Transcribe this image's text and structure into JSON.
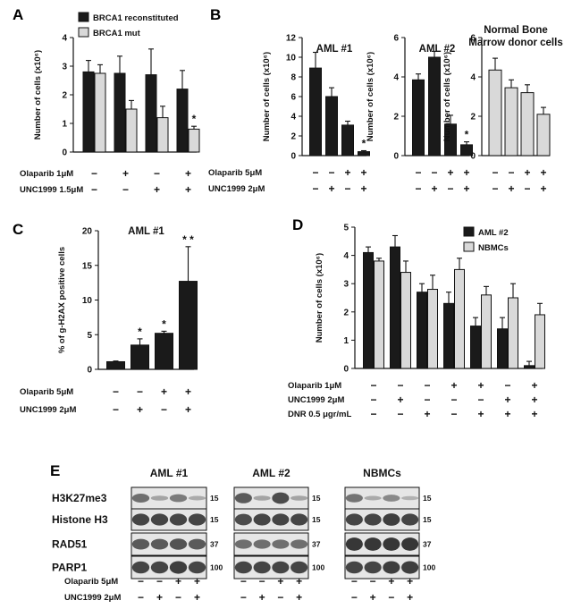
{
  "colors": {
    "dark": "#1a1a1a",
    "light": "#d9d9d9",
    "blot_bg": "#e6e6e6",
    "band": "#303030"
  },
  "panel_letters": [
    "A",
    "B",
    "C",
    "D",
    "E"
  ],
  "chart_data": [
    {
      "id": "A",
      "type": "bar",
      "title": "",
      "ylabel": "Number of cells (x10⁶)",
      "ylim": [
        0,
        4
      ],
      "yticks": [
        "0",
        "1",
        "2",
        "3",
        "4"
      ],
      "legend": [
        "BRCA1 reconstituted",
        "BRCA1 mut"
      ],
      "series": [
        {
          "name": "BRCA1 reconstituted",
          "color": "dark",
          "values": [
            2.8,
            2.75,
            2.7,
            2.2
          ],
          "errors": [
            0.4,
            0.6,
            0.9,
            0.65
          ]
        },
        {
          "name": "BRCA1 mut",
          "color": "light",
          "values": [
            2.75,
            1.5,
            1.2,
            0.8
          ],
          "errors": [
            0.3,
            0.3,
            0.4,
            0.1
          ]
        }
      ],
      "annotations": [
        {
          "group": 3,
          "series": 1,
          "text": "*"
        }
      ],
      "conditions": [
        {
          "label": "Olaparib 1μM",
          "values": [
            "−",
            "+",
            "−",
            "+"
          ]
        },
        {
          "label": "UNC1999 1.5μM",
          "values": [
            "−",
            "−",
            "+",
            "+"
          ]
        }
      ]
    },
    {
      "id": "B1",
      "type": "bar",
      "title": "AML #1",
      "ylabel": "Number of cells (x10⁶)",
      "ylim": [
        0,
        12
      ],
      "yticks": [
        "0",
        "2",
        "4",
        "6",
        "8",
        "10",
        "12"
      ],
      "series": [
        {
          "name": "AML #1",
          "color": "dark",
          "values": [
            8.9,
            6.0,
            3.1,
            0.4
          ],
          "errors": [
            1.6,
            0.9,
            0.4,
            0.1
          ]
        }
      ],
      "annotations": [
        {
          "group": 3,
          "series": 0,
          "text": "*"
        }
      ],
      "conditions": [
        {
          "label": "Olaparib 5μM",
          "values": [
            "−",
            "−",
            "+",
            "+"
          ]
        },
        {
          "label": "UNC1999 2μM",
          "values": [
            "−",
            "+",
            "−",
            "+"
          ]
        }
      ]
    },
    {
      "id": "B2",
      "type": "bar",
      "title": "AML #2",
      "ylabel": "Number of cells (x10⁶)",
      "ylim": [
        0,
        6
      ],
      "yticks": [
        "0",
        "2",
        "4",
        "6"
      ],
      "series": [
        {
          "name": "AML #2",
          "color": "dark",
          "values": [
            3.85,
            5.0,
            1.6,
            0.55
          ],
          "errors": [
            0.3,
            0.3,
            0.45,
            0.15
          ]
        }
      ],
      "annotations": [
        {
          "group": 3,
          "series": 0,
          "text": "*"
        }
      ],
      "conditions": [
        {
          "values": [
            "−",
            "−",
            "+",
            "+"
          ]
        },
        {
          "values": [
            "−",
            "+",
            "−",
            "+"
          ]
        }
      ]
    },
    {
      "id": "B3",
      "type": "bar",
      "title": "Normal Bone",
      "subtitle": "Marrow donor cells",
      "ylabel": "Number of cells (x10⁶)",
      "ylim": [
        0,
        6
      ],
      "yticks": [
        "0",
        "2",
        "4",
        "6"
      ],
      "series": [
        {
          "name": "Normal Bone Marrow donor cells",
          "color": "light",
          "values": [
            4.35,
            3.45,
            3.2,
            2.1
          ],
          "errors": [
            0.6,
            0.4,
            0.4,
            0.35
          ]
        }
      ],
      "annotations": [],
      "conditions": [
        {
          "values": [
            "−",
            "−",
            "+",
            "+"
          ]
        },
        {
          "values": [
            "−",
            "+",
            "−",
            "+"
          ]
        }
      ]
    },
    {
      "id": "C",
      "type": "bar",
      "title": "AML #1",
      "ylabel": "% of g-H2AX positive cells",
      "ylim": [
        0,
        20
      ],
      "yticks": [
        "0",
        "5",
        "10",
        "15",
        "20"
      ],
      "series": [
        {
          "name": "AML #1",
          "color": "dark",
          "values": [
            1.1,
            3.5,
            5.2,
            12.7
          ],
          "errors": [
            0.1,
            0.9,
            0.3,
            5.0
          ]
        }
      ],
      "annotations": [
        {
          "group": 1,
          "series": 0,
          "text": "*"
        },
        {
          "group": 2,
          "series": 0,
          "text": "*"
        },
        {
          "group": 3,
          "series": 0,
          "text": "* *"
        }
      ],
      "conditions": [
        {
          "label": "Olaparib 5μM",
          "values": [
            "−",
            "−",
            "+",
            "+"
          ]
        },
        {
          "label": "UNC1999 2μM",
          "values": [
            "−",
            "+",
            "−",
            "+"
          ]
        }
      ]
    },
    {
      "id": "D",
      "type": "bar",
      "title": "",
      "ylabel": "Number of cells (x10⁶)",
      "ylim": [
        0,
        5
      ],
      "yticks": [
        "0",
        "1",
        "2",
        "3",
        "4",
        "5"
      ],
      "legend": [
        "AML #2",
        "NBMCs"
      ],
      "series": [
        {
          "name": "AML #2",
          "color": "dark",
          "values": [
            4.1,
            4.3,
            2.7,
            2.3,
            1.5,
            1.4,
            0.1
          ],
          "errors": [
            0.2,
            0.4,
            0.3,
            0.4,
            0.3,
            0.4,
            0.15
          ]
        },
        {
          "name": "NBMCs",
          "color": "light",
          "values": [
            3.8,
            3.4,
            2.8,
            3.5,
            2.6,
            2.5,
            1.9
          ],
          "errors": [
            0.1,
            0.4,
            0.5,
            0.4,
            0.3,
            0.5,
            0.4
          ]
        }
      ],
      "annotations": [],
      "conditions": [
        {
          "label": "Olaparib 1μM",
          "values": [
            "−",
            "−",
            "−",
            "+",
            "+",
            "−",
            "+"
          ]
        },
        {
          "label": "UNC1999 2μM",
          "values": [
            "−",
            "+",
            "−",
            "−",
            "−",
            "+",
            "+"
          ]
        },
        {
          "label": "DNR 0.5 μgr/mL",
          "values": [
            "−",
            "−",
            "+",
            "−",
            "+",
            "+",
            "+"
          ]
        }
      ]
    }
  ],
  "western": {
    "blots": [
      {
        "title": "AML #1"
      },
      {
        "title": "AML #2"
      },
      {
        "title": "NBMCs"
      }
    ],
    "rows": [
      {
        "label": "H3K27me3",
        "kda": "15",
        "pattern": [
          [
            0.55,
            0.15,
            0.45,
            0.1
          ],
          [
            0.7,
            0.15,
            0.8,
            0.15
          ],
          [
            0.5,
            0.1,
            0.35,
            0.05
          ]
        ]
      },
      {
        "label": "Histone H3",
        "kda": "15",
        "pattern": [
          [
            0.85,
            0.85,
            0.85,
            0.85
          ],
          [
            0.8,
            0.85,
            0.85,
            0.85
          ],
          [
            0.85,
            0.85,
            0.9,
            0.85
          ]
        ]
      },
      {
        "label": "RAD51",
        "kda": "37",
        "pattern": [
          [
            0.7,
            0.7,
            0.75,
            0.7
          ],
          [
            0.55,
            0.55,
            0.55,
            0.55
          ],
          [
            0.95,
            0.95,
            0.95,
            0.95
          ]
        ]
      },
      {
        "label": "PARP1",
        "kda": "100",
        "pattern": [
          [
            0.85,
            0.85,
            0.9,
            0.85
          ],
          [
            0.85,
            0.85,
            0.85,
            0.85
          ],
          [
            0.85,
            0.85,
            0.9,
            0.9
          ]
        ]
      }
    ],
    "conditions": [
      {
        "label": "Olaparib 5μM",
        "values": [
          "−",
          "−",
          "+",
          "+"
        ]
      },
      {
        "label": "UNC1999 2μM",
        "values": [
          "−",
          "+",
          "−",
          "+"
        ]
      }
    ]
  }
}
